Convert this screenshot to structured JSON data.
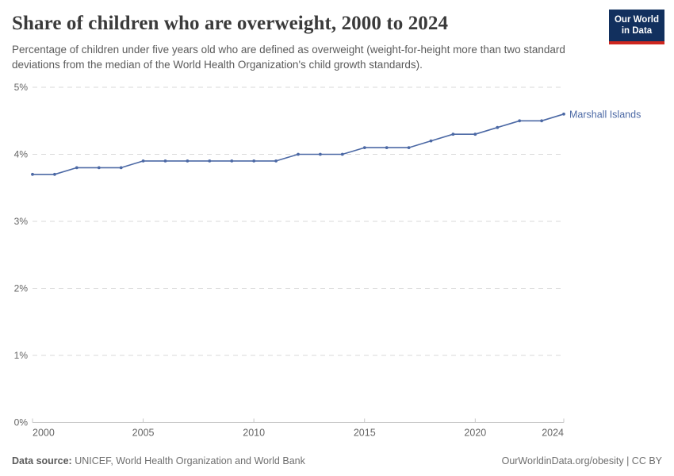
{
  "header": {
    "title": "Share of children who are overweight, 2000 to 2024",
    "subtitle": "Percentage of children under five years old who are defined as overweight (weight-for-height more than two standard deviations from the median of the World Health Organization's child growth standards)."
  },
  "logo": {
    "line1": "Our World",
    "line2": "in Data",
    "bg_color": "#12305E",
    "stripe_color": "#CE261F"
  },
  "chart_data": {
    "type": "line",
    "title": "Share of children who are overweight, 2000 to 2024",
    "xlabel": "",
    "ylabel": "",
    "xlim": [
      2000,
      2024
    ],
    "ylim": [
      0,
      5
    ],
    "x_ticks": [
      2000,
      2005,
      2010,
      2015,
      2020,
      2024
    ],
    "y_ticks": [
      0,
      1,
      2,
      3,
      4,
      5
    ],
    "y_tick_suffix": "%",
    "grid": "horizontal-dashed",
    "legend_position": "end-of-line-label",
    "series": [
      {
        "name": "Marshall Islands",
        "color": "#4C69A5",
        "x": [
          2000,
          2001,
          2002,
          2003,
          2004,
          2005,
          2006,
          2007,
          2008,
          2009,
          2010,
          2011,
          2012,
          2013,
          2014,
          2015,
          2016,
          2017,
          2018,
          2019,
          2020,
          2021,
          2022,
          2023,
          2024
        ],
        "values": [
          3.7,
          3.7,
          3.8,
          3.8,
          3.8,
          3.9,
          3.9,
          3.9,
          3.9,
          3.9,
          3.9,
          3.9,
          4.0,
          4.0,
          4.0,
          4.1,
          4.1,
          4.1,
          4.2,
          4.3,
          4.3,
          4.4,
          4.5,
          4.5,
          4.6
        ]
      }
    ],
    "colors": {
      "gridline": "#dadada",
      "axis_line": "#c8c8c8",
      "tick_label": "#666666"
    }
  },
  "footer": {
    "source_label": "Data source:",
    "source_text": " UNICEF, World Health Organization and World Bank",
    "license_text": "OurWorldinData.org/obesity | CC BY"
  }
}
